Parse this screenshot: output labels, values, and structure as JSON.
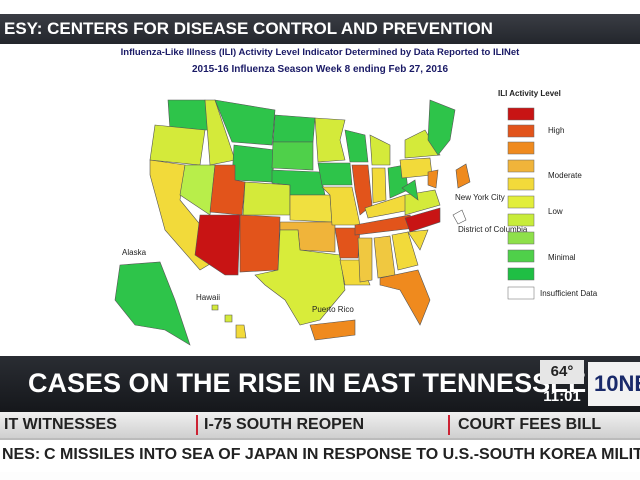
{
  "banner": {
    "text": "ESY: CENTERS FOR DISEASE CONTROL AND PREVENTION"
  },
  "map": {
    "title": "Influenza-Like Illness (ILI) Activity Level Indicator Determined by Data Reported to ILINet",
    "subtitle": "2015-16  Influenza Season Week  8 ending Feb 27, 2016",
    "labels": {
      "new_york_city": "New York City",
      "district_of_columbia": "District of Columbia",
      "alaska": "Alaska",
      "hawaii": "Hawaii",
      "puerto_rico": "Puerto Rico"
    },
    "legend": {
      "title": "ILI Activity Level",
      "levels": [
        "High",
        "Moderate",
        "Low",
        "Minimal",
        "Insufficient Data"
      ]
    }
  },
  "lower_third": {
    "headline": "CASES ON THE RISE IN EAST TENNESSEE",
    "temperature": "64°",
    "time": "11:01",
    "logo": "10NE"
  },
  "ticker": {
    "items": [
      "IT WITNESSES",
      "I-75 SOUTH REOPEN",
      "COURT FEES BILL"
    ]
  },
  "crawl": {
    "label": "NES:",
    "text": "C MISSILES INTO SEA OF JAPAN IN RESPONSE TO U.S.-SOUTH KOREA MILITARY DRILLS"
  }
}
